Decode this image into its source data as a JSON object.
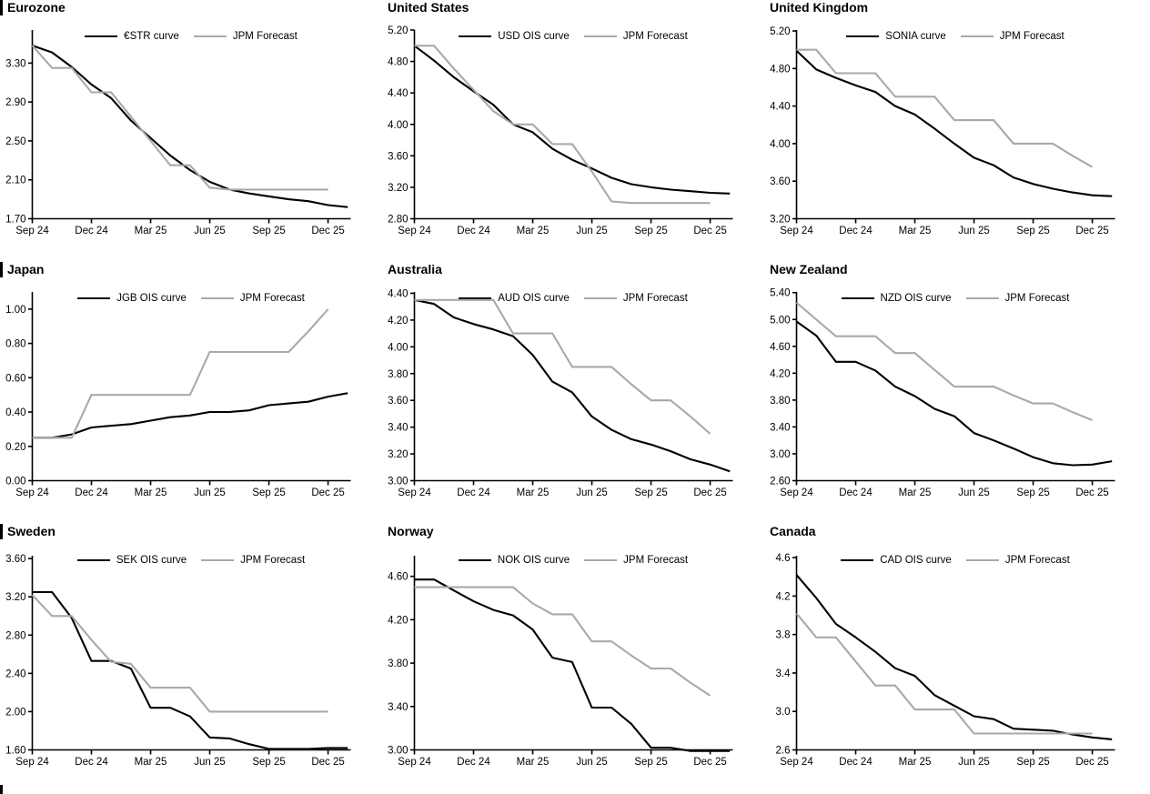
{
  "page": {
    "background": "#ffffff",
    "accent_black": "#000000",
    "accent_gray": "#a9a9a9"
  },
  "chart_data": [
    {
      "type": "line",
      "title": "Eurozone",
      "x_unit": "months from Sep 2024",
      "x_ticks": [
        "Sep 24",
        "Dec 24",
        "Mar 25",
        "Jun 25",
        "Sep 25",
        "Dec 25"
      ],
      "x_tick_months": [
        0,
        3,
        6,
        9,
        12,
        15
      ],
      "ylim": [
        1.7,
        3.64
      ],
      "y_ticks": [
        1.7,
        2.1,
        2.5,
        2.9,
        3.3
      ],
      "y_tick_labels": [
        "1.70",
        "2.10",
        "2.50",
        "2.90",
        "3.30"
      ],
      "grid": false,
      "legend_position": "top-center",
      "series": [
        {
          "name": "€STR curve",
          "role": "market",
          "color": "#000000",
          "values": [
            3.48,
            3.41,
            3.26,
            3.08,
            2.94,
            2.71,
            2.53,
            2.35,
            2.2,
            2.08,
            2.0,
            1.96,
            1.93,
            1.9,
            1.88,
            1.84,
            1.82
          ]
        },
        {
          "name": "JPM Forecast",
          "role": "forecast",
          "color": "#a9a9a9",
          "values": [
            3.48,
            3.25,
            3.25,
            3.0,
            3.0,
            2.75,
            2.5,
            2.25,
            2.25,
            2.02,
            2.0,
            2.0,
            2.0,
            2.0,
            2.0,
            2.0
          ]
        }
      ]
    },
    {
      "type": "line",
      "title": "United States",
      "x_unit": "months from Sep 2024",
      "x_ticks": [
        "Sep 24",
        "Dec 24",
        "Mar 25",
        "Jun 25",
        "Sep 25",
        "Dec 25"
      ],
      "x_tick_months": [
        0,
        3,
        6,
        9,
        12,
        15
      ],
      "ylim": [
        2.8,
        5.2
      ],
      "y_ticks": [
        2.8,
        3.2,
        3.6,
        4.0,
        4.4,
        4.8,
        5.2
      ],
      "y_tick_labels": [
        "2.80",
        "3.20",
        "3.60",
        "4.00",
        "4.40",
        "4.80",
        "5.20"
      ],
      "grid": false,
      "legend_position": "top-center",
      "series": [
        {
          "name": "USD OIS curve",
          "role": "market",
          "color": "#000000",
          "values": [
            5.0,
            4.81,
            4.6,
            4.42,
            4.25,
            4.0,
            3.9,
            3.69,
            3.55,
            3.44,
            3.32,
            3.24,
            3.2,
            3.17,
            3.15,
            3.13,
            3.12
          ]
        },
        {
          "name": "JPM Forecast",
          "role": "forecast",
          "color": "#a9a9a9",
          "values": [
            5.0,
            5.0,
            4.71,
            4.44,
            4.17,
            4.0,
            4.0,
            3.75,
            3.75,
            3.4,
            3.02,
            3.0,
            3.0,
            3.0,
            3.0,
            3.0
          ]
        }
      ]
    },
    {
      "type": "line",
      "title": "United Kingdom",
      "x_unit": "months from Sep 2024",
      "x_ticks": [
        "Sep 24",
        "Dec 24",
        "Mar 25",
        "Jun 25",
        "Sep 25",
        "Dec 25"
      ],
      "x_tick_months": [
        0,
        3,
        6,
        9,
        12,
        15
      ],
      "ylim": [
        3.2,
        5.21
      ],
      "y_ticks": [
        3.2,
        3.6,
        4.0,
        4.4,
        4.8,
        5.2
      ],
      "y_tick_labels": [
        "3.20",
        "3.60",
        "4.00",
        "4.40",
        "4.80",
        "5.20"
      ],
      "grid": false,
      "legend_position": "top-center",
      "series": [
        {
          "name": "SONIA curve",
          "role": "market",
          "color": "#000000",
          "values": [
            4.99,
            4.79,
            4.7,
            4.62,
            4.55,
            4.4,
            4.31,
            4.16,
            4.0,
            3.85,
            3.77,
            3.64,
            3.57,
            3.52,
            3.48,
            3.45,
            3.44
          ]
        },
        {
          "name": "JPM Forecast",
          "role": "forecast",
          "color": "#a9a9a9",
          "values": [
            5.0,
            5.0,
            4.75,
            4.75,
            4.75,
            4.5,
            4.5,
            4.5,
            4.25,
            4.25,
            4.25,
            4.0,
            4.0,
            4.0,
            3.87,
            3.75
          ]
        }
      ]
    },
    {
      "type": "line",
      "title": "Japan",
      "x_unit": "months from Sep 2024",
      "x_ticks": [
        "Sep 24",
        "Dec 24",
        "Mar 25",
        "Jun 25",
        "Sep 25",
        "Dec 25"
      ],
      "x_tick_months": [
        0,
        3,
        6,
        9,
        12,
        15
      ],
      "ylim": [
        0.0,
        1.1
      ],
      "y_ticks": [
        0.0,
        0.2,
        0.4,
        0.6,
        0.8,
        1.0
      ],
      "y_tick_labels": [
        "0.00",
        "0.20",
        "0.40",
        "0.60",
        "0.80",
        "1.00"
      ],
      "grid": false,
      "legend_position": "top-center",
      "series": [
        {
          "name": "JGB OIS curve",
          "role": "market",
          "color": "#000000",
          "values": [
            0.25,
            0.25,
            0.27,
            0.31,
            0.32,
            0.33,
            0.35,
            0.37,
            0.38,
            0.4,
            0.4,
            0.41,
            0.44,
            0.45,
            0.46,
            0.49,
            0.51
          ]
        },
        {
          "name": "JPM Forecast",
          "role": "forecast",
          "color": "#a9a9a9",
          "values": [
            0.25,
            0.25,
            0.25,
            0.5,
            0.5,
            0.5,
            0.5,
            0.5,
            0.5,
            0.75,
            0.75,
            0.75,
            0.75,
            0.75,
            0.87,
            1.0
          ]
        }
      ]
    },
    {
      "type": "line",
      "title": "Australia",
      "x_unit": "months from Sep 2024",
      "x_ticks": [
        "Sep 24",
        "Dec 24",
        "Mar 25",
        "Jun 25",
        "Sep 25",
        "Dec 25"
      ],
      "x_tick_months": [
        0,
        3,
        6,
        9,
        12,
        15
      ],
      "ylim": [
        3.0,
        4.41
      ],
      "y_ticks": [
        3.0,
        3.2,
        3.4,
        3.6,
        3.8,
        4.0,
        4.2,
        4.4
      ],
      "y_tick_labels": [
        "3.00",
        "3.20",
        "3.40",
        "3.60",
        "3.80",
        "4.00",
        "4.20",
        "4.40"
      ],
      "grid": false,
      "legend_position": "top-center",
      "series": [
        {
          "name": "AUD OIS curve",
          "role": "market",
          "color": "#000000",
          "values": [
            4.35,
            4.32,
            4.22,
            4.17,
            4.13,
            4.08,
            3.94,
            3.74,
            3.66,
            3.48,
            3.38,
            3.31,
            3.27,
            3.22,
            3.16,
            3.12,
            3.07
          ]
        },
        {
          "name": "JPM Forecast",
          "role": "forecast",
          "color": "#a9a9a9",
          "values": [
            4.35,
            4.35,
            4.35,
            4.35,
            4.35,
            4.1,
            4.1,
            4.1,
            3.85,
            3.85,
            3.85,
            3.72,
            3.6,
            3.6,
            3.48,
            3.35
          ]
        }
      ]
    },
    {
      "type": "line",
      "title": "New Zealand",
      "x_unit": "months from Sep 2024",
      "x_ticks": [
        "Sep 24",
        "Dec 24",
        "Mar 25",
        "Jun 25",
        "Sep 25",
        "Dec 25"
      ],
      "x_tick_months": [
        0,
        3,
        6,
        9,
        12,
        15
      ],
      "ylim": [
        2.6,
        5.41
      ],
      "y_ticks": [
        2.6,
        3.0,
        3.4,
        3.8,
        4.2,
        4.6,
        5.0,
        5.4
      ],
      "y_tick_labels": [
        "2.60",
        "3.00",
        "3.40",
        "3.80",
        "4.20",
        "4.60",
        "5.00",
        "5.40"
      ],
      "grid": false,
      "legend_position": "top-center",
      "series": [
        {
          "name": "NZD OIS curve",
          "role": "market",
          "color": "#000000",
          "values": [
            4.97,
            4.76,
            4.37,
            4.37,
            4.24,
            4.0,
            3.86,
            3.67,
            3.56,
            3.31,
            3.2,
            3.08,
            2.95,
            2.86,
            2.83,
            2.84,
            2.89
          ]
        },
        {
          "name": "JPM Forecast",
          "role": "forecast",
          "color": "#a9a9a9",
          "values": [
            5.25,
            5.0,
            4.75,
            4.75,
            4.75,
            4.5,
            4.5,
            4.25,
            4.0,
            4.0,
            4.0,
            3.87,
            3.75,
            3.75,
            3.62,
            3.5
          ]
        }
      ]
    },
    {
      "type": "line",
      "title": "Sweden",
      "x_unit": "months from Sep 2024",
      "x_ticks": [
        "Sep 24",
        "Dec 24",
        "Mar 25",
        "Jun 25",
        "Sep 25",
        "Dec 25"
      ],
      "x_tick_months": [
        0,
        3,
        6,
        9,
        12,
        15
      ],
      "ylim": [
        1.6,
        3.63
      ],
      "y_ticks": [
        1.6,
        2.0,
        2.4,
        2.8,
        3.2,
        3.6
      ],
      "y_tick_labels": [
        "1.60",
        "2.00",
        "2.40",
        "2.80",
        "3.20",
        "3.60"
      ],
      "grid": false,
      "legend_position": "top-center",
      "series": [
        {
          "name": "SEK OIS curve",
          "role": "market",
          "color": "#000000",
          "values": [
            3.25,
            3.25,
            2.98,
            2.53,
            2.53,
            2.45,
            2.04,
            2.04,
            1.95,
            1.73,
            1.72,
            1.66,
            1.61,
            1.61,
            1.61,
            1.62,
            1.62
          ]
        },
        {
          "name": "JPM Forecast",
          "role": "forecast",
          "color": "#a9a9a9",
          "values": [
            3.22,
            3.0,
            3.0,
            2.75,
            2.52,
            2.5,
            2.25,
            2.25,
            2.25,
            2.0,
            2.0,
            2.0,
            2.0,
            2.0,
            2.0,
            2.0
          ]
        }
      ]
    },
    {
      "type": "line",
      "title": "Norway",
      "x_unit": "months from Sep 2024",
      "x_ticks": [
        "Sep 24",
        "Dec 24",
        "Mar 25",
        "Jun 25",
        "Sep 25",
        "Dec 25"
      ],
      "x_tick_months": [
        0,
        3,
        6,
        9,
        12,
        15
      ],
      "ylim": [
        3.0,
        4.79
      ],
      "y_ticks": [
        3.0,
        3.4,
        3.8,
        4.2,
        4.6
      ],
      "y_tick_labels": [
        "3.00",
        "3.40",
        "3.80",
        "4.20",
        "4.60"
      ],
      "grid": false,
      "legend_position": "top-center",
      "series": [
        {
          "name": "NOK OIS curve",
          "role": "market",
          "color": "#000000",
          "values": [
            4.57,
            4.57,
            4.47,
            4.37,
            4.29,
            4.24,
            4.11,
            3.85,
            3.81,
            3.39,
            3.39,
            3.24,
            3.02,
            3.02,
            2.99,
            2.99,
            2.99
          ]
        },
        {
          "name": "JPM Forecast",
          "role": "forecast",
          "color": "#a9a9a9",
          "values": [
            4.5,
            4.5,
            4.5,
            4.5,
            4.5,
            4.5,
            4.35,
            4.25,
            4.25,
            4.0,
            4.0,
            3.87,
            3.75,
            3.75,
            3.62,
            3.5
          ]
        }
      ]
    },
    {
      "type": "line",
      "title": "Canada",
      "x_unit": "months from Sep 2024",
      "x_ticks": [
        "Sep 24",
        "Dec 24",
        "Mar 25",
        "Jun 25",
        "Sep 25",
        "Dec 25"
      ],
      "x_tick_months": [
        0,
        3,
        6,
        9,
        12,
        15
      ],
      "ylim": [
        2.6,
        4.62
      ],
      "y_ticks": [
        2.6,
        3.0,
        3.4,
        3.8,
        4.2,
        4.6
      ],
      "y_tick_labels": [
        "2.6",
        "3.0",
        "3.4",
        "3.8",
        "4.2",
        "4.6"
      ],
      "grid": false,
      "legend_position": "top-center",
      "series": [
        {
          "name": "CAD OIS curve",
          "role": "market",
          "color": "#000000",
          "values": [
            4.42,
            4.18,
            3.91,
            3.77,
            3.62,
            3.45,
            3.37,
            3.17,
            3.06,
            2.95,
            2.92,
            2.82,
            2.81,
            2.8,
            2.76,
            2.73,
            2.71
          ]
        },
        {
          "name": "JPM Forecast",
          "role": "forecast",
          "color": "#a9a9a9",
          "values": [
            4.02,
            3.77,
            3.77,
            3.52,
            3.27,
            3.27,
            3.02,
            3.02,
            3.02,
            2.77,
            2.77,
            2.77,
            2.77,
            2.77,
            2.77,
            2.77
          ]
        }
      ]
    }
  ]
}
